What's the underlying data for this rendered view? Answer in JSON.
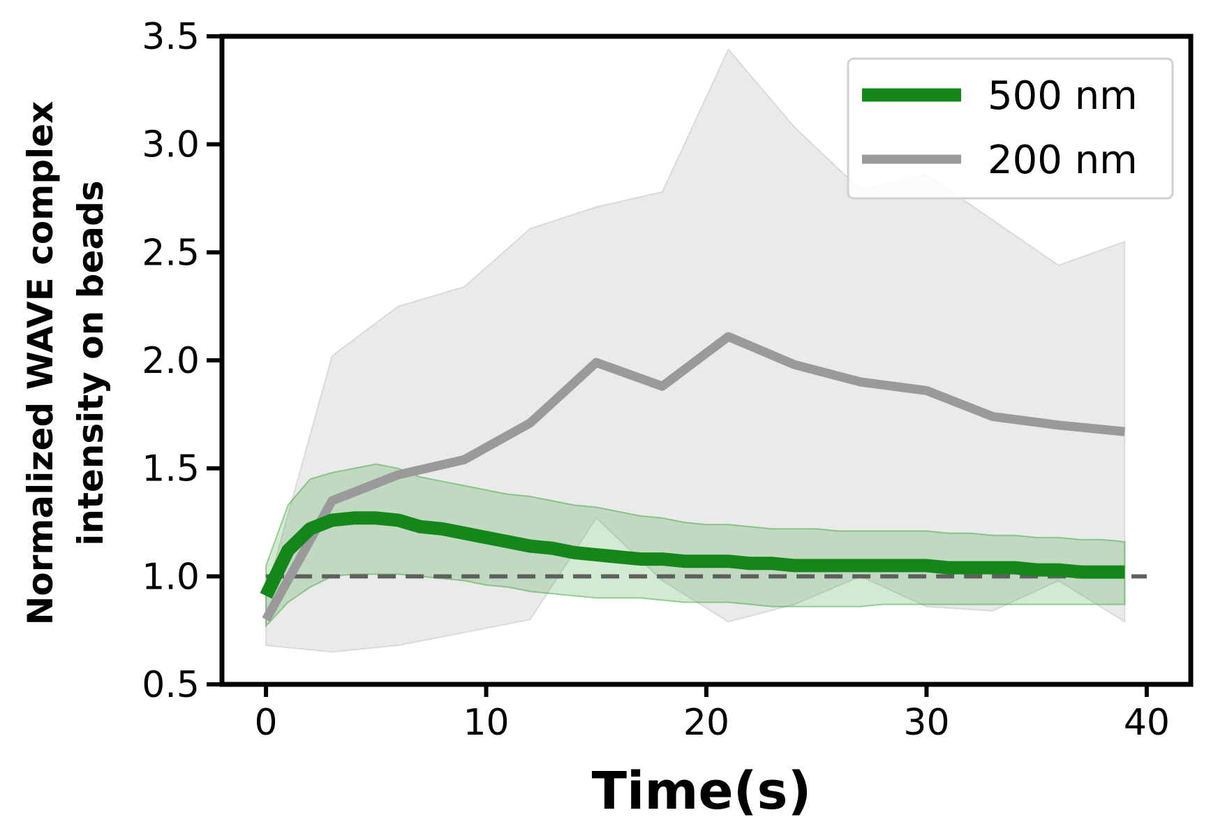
{
  "chart_data": {
    "type": "line",
    "xlabel": "Time(s)",
    "ylabel_line1": "Normalized WAVE complex",
    "ylabel_line2": "intensity on beads",
    "xlim": [
      -2,
      42
    ],
    "ylim": [
      0.5,
      3.5
    ],
    "xticks": [
      "0",
      "10",
      "20",
      "30",
      "40"
    ],
    "yticks": [
      "0.5",
      "1.0",
      "1.5",
      "2.0",
      "2.5",
      "3.0",
      "3.5"
    ],
    "legend_position": "top-right",
    "grid": false,
    "reference_line": {
      "y": 1.0,
      "style": "dashed",
      "color": "#5f5f5f"
    },
    "series": [
      {
        "name": "500 nm",
        "color": "#15861a",
        "band_color": "#2ca02c",
        "x": [
          0,
          1,
          2,
          3,
          4,
          5,
          6,
          7,
          8,
          9,
          10,
          11,
          12,
          13,
          14,
          15,
          16,
          17,
          18,
          19,
          20,
          21,
          22,
          23,
          24,
          25,
          26,
          27,
          28,
          29,
          30,
          31,
          32,
          33,
          34,
          35,
          36,
          37,
          38,
          39
        ],
        "y": [
          0.91,
          1.12,
          1.22,
          1.26,
          1.27,
          1.27,
          1.26,
          1.23,
          1.22,
          1.2,
          1.18,
          1.16,
          1.14,
          1.13,
          1.11,
          1.1,
          1.09,
          1.08,
          1.08,
          1.07,
          1.07,
          1.07,
          1.06,
          1.06,
          1.05,
          1.05,
          1.05,
          1.05,
          1.05,
          1.05,
          1.05,
          1.04,
          1.04,
          1.04,
          1.04,
          1.03,
          1.03,
          1.02,
          1.02,
          1.02
        ],
        "upper": [
          1.05,
          1.33,
          1.45,
          1.48,
          1.5,
          1.52,
          1.5,
          1.46,
          1.44,
          1.42,
          1.4,
          1.38,
          1.37,
          1.35,
          1.33,
          1.32,
          1.3,
          1.28,
          1.27,
          1.25,
          1.24,
          1.24,
          1.23,
          1.22,
          1.22,
          1.22,
          1.21,
          1.21,
          1.21,
          1.21,
          1.21,
          1.2,
          1.2,
          1.19,
          1.19,
          1.18,
          1.18,
          1.17,
          1.17,
          1.16
        ],
        "lower": [
          0.77,
          0.88,
          0.95,
          1.0,
          1.01,
          1.01,
          1.01,
          1.0,
          0.99,
          0.98,
          0.96,
          0.95,
          0.93,
          0.92,
          0.91,
          0.9,
          0.9,
          0.9,
          0.89,
          0.88,
          0.88,
          0.88,
          0.87,
          0.86,
          0.86,
          0.86,
          0.86,
          0.86,
          0.87,
          0.87,
          0.87,
          0.87,
          0.87,
          0.87,
          0.87,
          0.87,
          0.87,
          0.87,
          0.87,
          0.87
        ]
      },
      {
        "name": "200 nm",
        "color": "#9a9a9a",
        "band_color": "#bdbdbd",
        "x": [
          0,
          3,
          6,
          9,
          12,
          15,
          18,
          21,
          24,
          27,
          30,
          33,
          36,
          39
        ],
        "y": [
          0.8,
          1.35,
          1.47,
          1.54,
          1.71,
          1.99,
          1.88,
          2.11,
          1.98,
          1.9,
          1.86,
          1.74,
          1.7,
          1.67
        ],
        "upper": [
          0.92,
          2.02,
          2.25,
          2.34,
          2.61,
          2.71,
          2.78,
          3.44,
          3.08,
          2.79,
          2.86,
          2.65,
          2.44,
          2.55
        ],
        "lower": [
          0.68,
          0.65,
          0.68,
          0.74,
          0.8,
          1.27,
          0.98,
          0.79,
          0.87,
          1.0,
          0.86,
          0.84,
          0.98,
          0.79
        ]
      }
    ]
  }
}
